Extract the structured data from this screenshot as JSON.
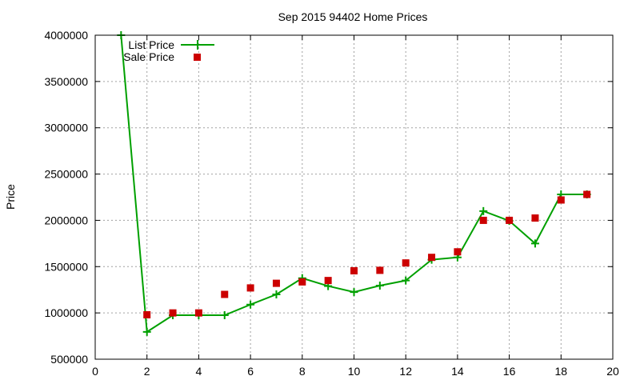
{
  "chart_data": {
    "type": "line",
    "title": "Sep 2015 94402 Home Prices",
    "xlabel": "",
    "ylabel": "Price",
    "xlim": [
      0,
      20
    ],
    "ylim": [
      500000,
      4000000
    ],
    "x_ticks": [
      0,
      2,
      4,
      6,
      8,
      10,
      12,
      14,
      16,
      18,
      20
    ],
    "y_ticks": [
      500000,
      1000000,
      1500000,
      2000000,
      2500000,
      3000000,
      3500000,
      4000000
    ],
    "grid": true,
    "legend": "top-left",
    "series": [
      {
        "name": "List Price",
        "style": "lines+points",
        "color": "#00a000",
        "marker": "plus",
        "x": [
          1,
          2,
          3,
          4,
          5,
          6,
          7,
          8,
          9,
          10,
          11,
          12,
          13,
          14,
          15,
          16,
          17,
          18,
          19
        ],
        "values": [
          4000000,
          795000,
          975000,
          975000,
          975000,
          1090000,
          1200000,
          1375000,
          1290000,
          1225000,
          1295000,
          1350000,
          1575000,
          1600000,
          2100000,
          1995000,
          1750000,
          2280000,
          2280000
        ]
      },
      {
        "name": "Sale Price",
        "style": "points",
        "color": "#cc0000",
        "marker": "square",
        "x": [
          2,
          3,
          4,
          5,
          6,
          7,
          8,
          9,
          10,
          11,
          12,
          13,
          14,
          15,
          16,
          17,
          18,
          19
        ],
        "values": [
          980000,
          1000000,
          1000000,
          1200000,
          1270000,
          1320000,
          1335000,
          1350000,
          1455000,
          1460000,
          1540000,
          1600000,
          1660000,
          2000000,
          2000000,
          2025000,
          2220000,
          2280000
        ]
      }
    ]
  }
}
